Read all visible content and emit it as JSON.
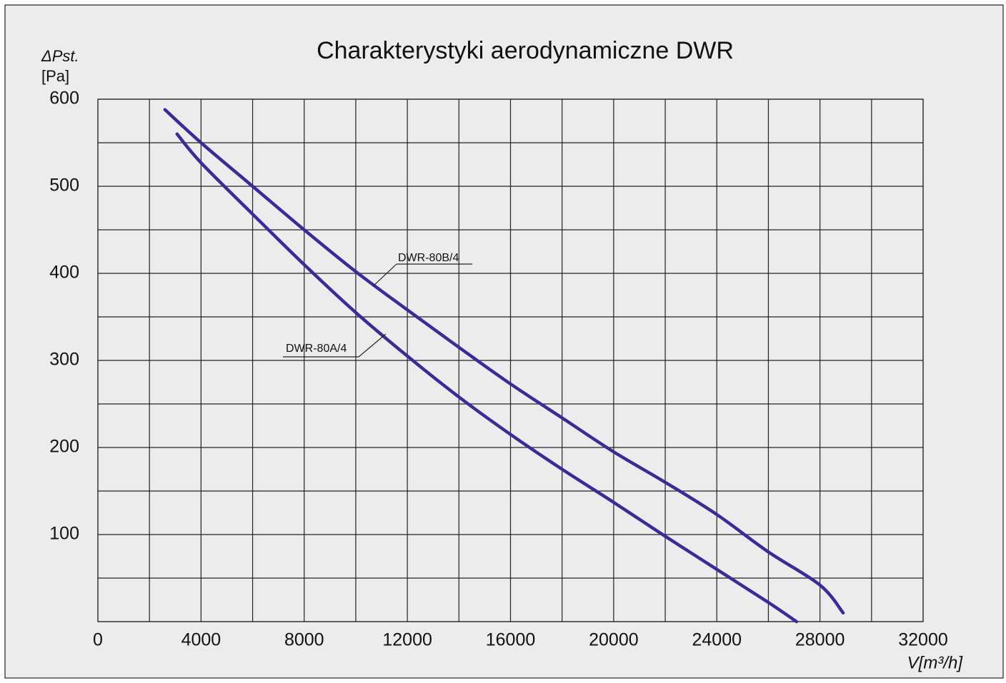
{
  "chart_data": {
    "type": "line",
    "title": "Charakterystyki aerodynamiczne DWR",
    "y_label": "ΔPst.",
    "y_unit": "[Pa]",
    "x_label": "V[m³/h]",
    "series": [
      {
        "name": "DWR-80B/4",
        "color": "#3b2b98",
        "x": [
          2600,
          4000,
          6000,
          8000,
          10000,
          12000,
          14000,
          16000,
          18000,
          20000,
          22000,
          24000,
          26000,
          28000,
          28900
        ],
        "values": [
          588,
          550,
          500,
          450,
          402,
          358,
          315,
          273,
          234,
          195,
          160,
          123,
          80,
          42,
          10
        ]
      },
      {
        "name": "DWR-80A/4",
        "color": "#3b2b98",
        "x": [
          3070,
          4000,
          6000,
          8000,
          10000,
          12000,
          14000,
          16000,
          18000,
          20000,
          22000,
          24000,
          26000,
          27090
        ],
        "values": [
          560,
          527,
          468,
          410,
          355,
          305,
          258,
          215,
          175,
          137,
          98,
          60,
          22,
          0
        ]
      }
    ],
    "xlim": [
      0,
      32000
    ],
    "ylim": [
      0,
      600
    ],
    "xticks": [
      0,
      4000,
      8000,
      12000,
      16000,
      20000,
      24000,
      28000,
      32000
    ],
    "yticks": [
      100,
      200,
      300,
      400,
      500,
      600
    ],
    "xminor_ticks": [
      2000,
      6000,
      10000,
      14000,
      18000,
      22000,
      26000,
      30000
    ],
    "yminor_ticks": [
      0,
      50,
      150,
      250,
      350,
      450,
      550
    ],
    "grid": true
  }
}
